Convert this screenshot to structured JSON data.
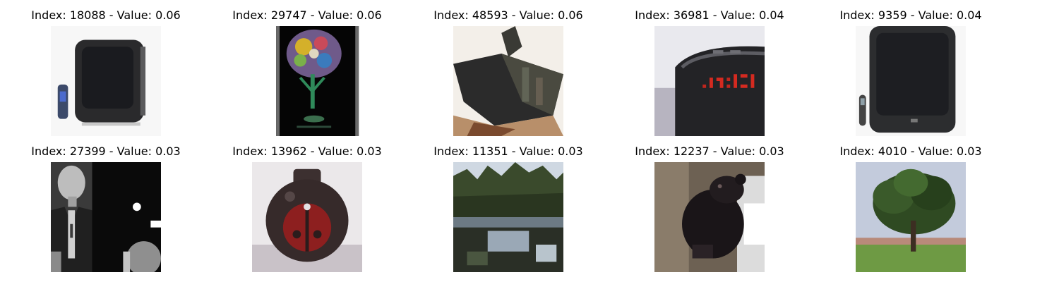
{
  "figure": {
    "panels": [
      {
        "title": "Index: 18088 - Value: 0.06",
        "subject": "crt-television-with-remote"
      },
      {
        "title": "Index: 29747 - Value: 0.06",
        "subject": "colorful-glass-on-black"
      },
      {
        "title": "Index: 48593 - Value: 0.06",
        "subject": "dark-box-object"
      },
      {
        "title": "Index: 36981 - Value: 0.04",
        "subject": "digital-alarm-clock"
      },
      {
        "title": "Index: 9359 - Value: 0.04",
        "subject": "crt-television-with-remote"
      },
      {
        "title": "Index: 27399 - Value: 0.03",
        "subject": "grayscale-man-portrait"
      },
      {
        "title": "Index: 13962 - Value: 0.03",
        "subject": "ladybug-jar"
      },
      {
        "title": "Index: 11351 - Value: 0.03",
        "subject": "forest-lake"
      },
      {
        "title": "Index: 12237 - Value: 0.03",
        "subject": "bear-cub-on-tree"
      },
      {
        "title": "Index: 4010 - Value: 0.03",
        "subject": "tree-on-grass"
      }
    ]
  }
}
